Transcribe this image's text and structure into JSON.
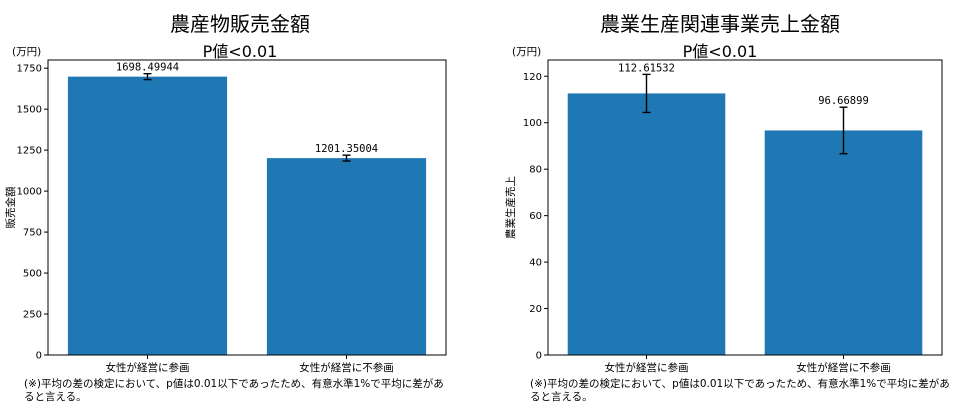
{
  "chart_data": [
    {
      "type": "bar",
      "title": "農産物販売金額",
      "subtitle": "P値<0.01",
      "ylabel": "販売金額",
      "unit": "(万円)",
      "categories": [
        "女性が経営に参画",
        "女性が経営に不参画"
      ],
      "values": [
        1698.49944,
        1201.35004
      ],
      "value_labels": [
        "1698.49944",
        "1201.35004"
      ],
      "error": [
        18,
        18
      ],
      "ylim": [
        0,
        1800
      ],
      "yticks": [
        0,
        250,
        500,
        750,
        1000,
        1250,
        1500,
        1750
      ],
      "bar_color": "#1f77b4",
      "note": "(※)平均の差の検定において、p値は0.01以下であったため、有意水準1%で平均に差があると言える。"
    },
    {
      "type": "bar",
      "title": "農業生産関連事業売上金額",
      "subtitle": "P値<0.01",
      "ylabel": "農業生産売上",
      "unit": "(万円)",
      "categories": [
        "女性が経営に参画",
        "女性が経営に不参画"
      ],
      "values": [
        112.61532,
        96.66899
      ],
      "value_labels": [
        "112.61532",
        "96.66899"
      ],
      "error": [
        8.2,
        10
      ],
      "ylim": [
        0,
        127
      ],
      "yticks": [
        0,
        20,
        40,
        60,
        80,
        100,
        120
      ],
      "bar_color": "#1f77b4",
      "note": "(※)平均の差の検定において、p値は0.01以下であったため、有意水準1%で平均に差があると言える。"
    }
  ]
}
